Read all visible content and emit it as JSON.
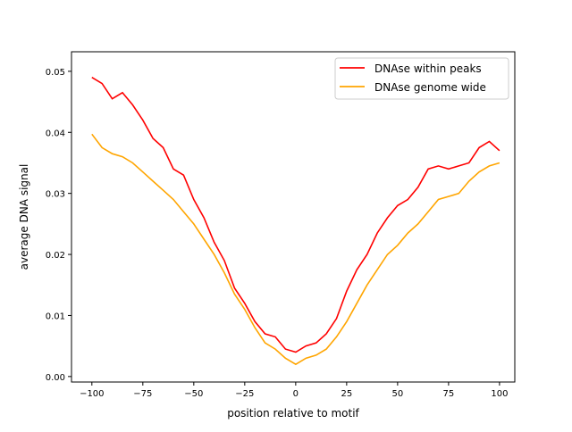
{
  "chart_data": {
    "type": "line",
    "title": "",
    "xlabel": "position relative to motif",
    "ylabel": "average DNA signal",
    "xlim": [
      -110,
      107.5
    ],
    "ylim": [
      -0.0009,
      0.0532
    ],
    "xticks": [
      -100,
      -75,
      -50,
      -25,
      0,
      25,
      50,
      75,
      100
    ],
    "xtick_labels": [
      "−100",
      "−75",
      "−50",
      "−25",
      "0",
      "25",
      "50",
      "75",
      "100"
    ],
    "yticks": [
      0.0,
      0.01,
      0.02,
      0.03,
      0.04,
      0.05
    ],
    "ytick_labels": [
      "0.00",
      "0.01",
      "0.02",
      "0.03",
      "0.04",
      "0.05"
    ],
    "grid": false,
    "legend_placement": "top-right",
    "x": [
      -100,
      -95,
      -90,
      -85,
      -80,
      -75,
      -70,
      -65,
      -60,
      -55,
      -50,
      -45,
      -40,
      -35,
      -30,
      -25,
      -20,
      -15,
      -10,
      -5,
      0,
      5,
      10,
      15,
      20,
      25,
      30,
      35,
      40,
      45,
      50,
      55,
      60,
      65,
      70,
      75,
      80,
      85,
      90,
      95,
      100
    ],
    "series": [
      {
        "name": "DNAse within peaks",
        "color": "#ff0000",
        "values": [
          0.049,
          0.048,
          0.0455,
          0.0465,
          0.0445,
          0.042,
          0.039,
          0.0375,
          0.034,
          0.033,
          0.029,
          0.026,
          0.022,
          0.019,
          0.0145,
          0.012,
          0.009,
          0.007,
          0.0065,
          0.0045,
          0.004,
          0.005,
          0.0055,
          0.007,
          0.0095,
          0.014,
          0.0175,
          0.02,
          0.0235,
          0.026,
          0.028,
          0.029,
          0.031,
          0.034,
          0.0345,
          0.034,
          0.0345,
          0.035,
          0.0375,
          0.0385,
          0.037
        ]
      },
      {
        "name": "DNAse genome wide",
        "color": "#ffa500",
        "values": [
          0.0397,
          0.0375,
          0.0365,
          0.036,
          0.035,
          0.0335,
          0.032,
          0.0305,
          0.029,
          0.027,
          0.025,
          0.0225,
          0.02,
          0.017,
          0.0135,
          0.011,
          0.008,
          0.0055,
          0.0045,
          0.003,
          0.002,
          0.003,
          0.0035,
          0.0045,
          0.0065,
          0.009,
          0.012,
          0.015,
          0.0175,
          0.02,
          0.0215,
          0.0235,
          0.025,
          0.027,
          0.029,
          0.0295,
          0.03,
          0.032,
          0.0335,
          0.0345,
          0.035
        ]
      }
    ]
  }
}
